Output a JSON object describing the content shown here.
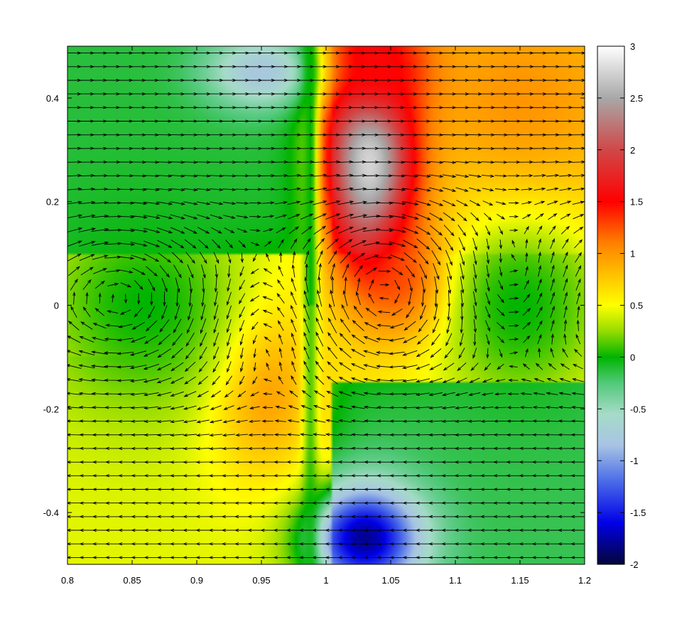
{
  "chart_data": {
    "type": "heatmap",
    "subtype": "vector field over scalar color map",
    "title": "",
    "xlabel": "",
    "ylabel": "",
    "xlim": [
      0.8,
      1.2
    ],
    "ylim": [
      -0.5,
      0.5
    ],
    "x_ticks": [
      "0.8",
      "0.85",
      "0.9",
      "0.95",
      "1",
      "1.05",
      "1.1",
      "1.15",
      "1.2"
    ],
    "x_tick_values": [
      0.8,
      0.85,
      0.9,
      0.95,
      1.0,
      1.05,
      1.1,
      1.15,
      1.2
    ],
    "y_ticks": [
      "0.4",
      "0.2",
      "0",
      "-0.2",
      "-0.4"
    ],
    "y_tick_values": [
      0.4,
      0.2,
      0.0,
      -0.2,
      -0.4
    ],
    "colorbar": {
      "range": [
        -2,
        3
      ],
      "tick_labels": [
        "3",
        "2.5",
        "2",
        "1.5",
        "1",
        "0.5",
        "0",
        "-0.5",
        "-1",
        "-1.5",
        "-2"
      ],
      "tick_values": [
        3,
        2.5,
        2,
        1.5,
        1,
        0.5,
        0,
        -0.5,
        -1,
        -1.5,
        -2
      ],
      "palette": [
        {
          "value": -2.0,
          "color": "#05053a"
        },
        {
          "value": -1.6,
          "color": "#0000e6"
        },
        {
          "value": -1.2,
          "color": "#4a6be8"
        },
        {
          "value": -0.85,
          "color": "#a8c4e4"
        },
        {
          "value": -0.55,
          "color": "#a6dbc8"
        },
        {
          "value": -0.25,
          "color": "#52c97a"
        },
        {
          "value": 0.0,
          "color": "#00b400"
        },
        {
          "value": 0.25,
          "color": "#96dc00"
        },
        {
          "value": 0.5,
          "color": "#ffff00"
        },
        {
          "value": 0.8,
          "color": "#ffc000"
        },
        {
          "value": 1.1,
          "color": "#ff8000"
        },
        {
          "value": 1.5,
          "color": "#ff0000"
        },
        {
          "value": 2.0,
          "color": "#d04848"
        },
        {
          "value": 2.5,
          "color": "#a8a8a8"
        },
        {
          "value": 3.0,
          "color": "#ffffff"
        }
      ]
    },
    "scalar_field_features": [
      {
        "x": 1.035,
        "y": 0.28,
        "value": 2.9,
        "sx": 0.025,
        "sy": 0.16
      },
      {
        "x": 1.04,
        "y": 0.45,
        "value": 1.6,
        "sx": 0.03,
        "sy": 0.06
      },
      {
        "x": 1.07,
        "y": 0.05,
        "value": 1.6,
        "sx": 0.025,
        "sy": 0.08
      },
      {
        "x": 1.03,
        "y": -0.45,
        "value": -1.8,
        "sx": 0.03,
        "sy": 0.07
      },
      {
        "x": 0.95,
        "y": -0.15,
        "value": 1.1,
        "sx": 0.03,
        "sy": 0.12
      },
      {
        "x": 0.95,
        "y": 0.45,
        "value": -0.8,
        "sx": 0.03,
        "sy": 0.05
      },
      {
        "x": 0.86,
        "y": 0.0,
        "value": 0.0,
        "sx": 0.06,
        "sy": 0.15
      },
      {
        "x": 1.15,
        "y": 0.0,
        "value": 0.0,
        "sx": 0.05,
        "sy": 0.15
      },
      {
        "x": 1.15,
        "y": 0.4,
        "value": 1.0,
        "sx": 0.05,
        "sy": 0.12
      }
    ],
    "vortices": [
      {
        "x": 0.955,
        "y": -0.03,
        "rotation": "counterclockwise"
      },
      {
        "x": 1.045,
        "y": 0.04,
        "rotation": "clockwise"
      },
      {
        "x": 0.84,
        "y": 0.02,
        "rotation": "clockwise"
      },
      {
        "x": 1.14,
        "y": 0.03,
        "rotation": "counterclockwise"
      }
    ],
    "background_flow": "rightward in upper half, leftward in lower half",
    "arrow_color": "#000000"
  }
}
